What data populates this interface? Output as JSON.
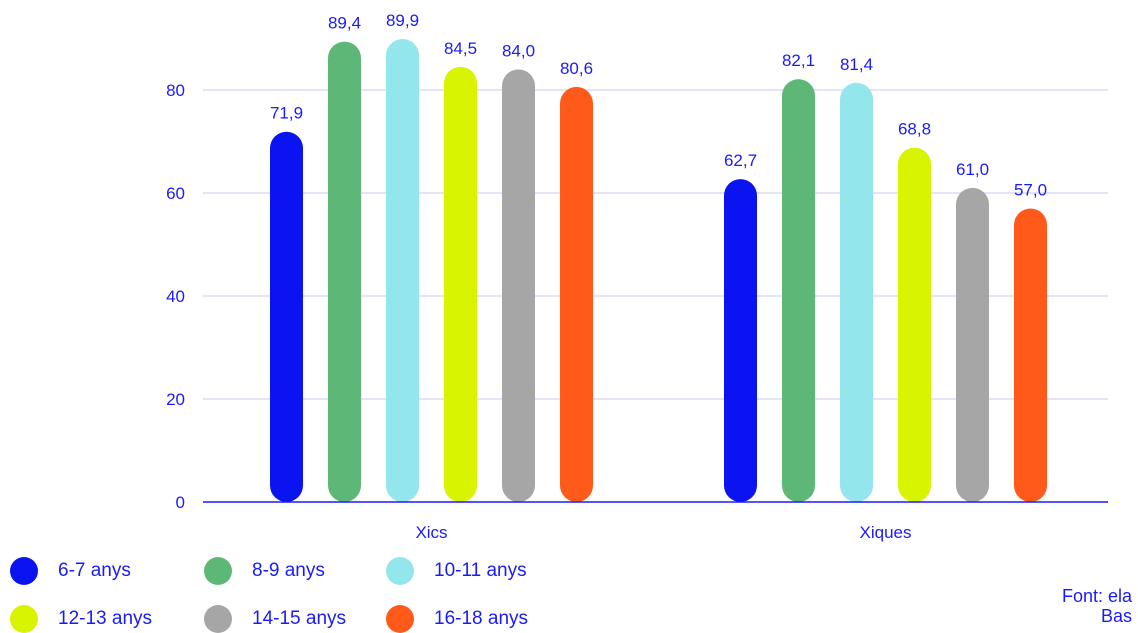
{
  "chart_data": {
    "type": "bar",
    "categories": [
      "Xics",
      "Xiques"
    ],
    "series": [
      {
        "name": "6-7 anys",
        "color": "#0a14f0",
        "values": [
          71.9,
          62.7
        ],
        "labels": [
          "71,9",
          "62,7"
        ]
      },
      {
        "name": "8-9 anys",
        "color": "#5db877",
        "values": [
          89.4,
          82.1
        ],
        "labels": [
          "89,4",
          "82,1"
        ]
      },
      {
        "name": "10-11 anys",
        "color": "#93e6ec",
        "values": [
          89.9,
          81.4
        ],
        "labels": [
          "89,9",
          "81,4"
        ]
      },
      {
        "name": "12-13 anys",
        "color": "#d9f400",
        "values": [
          84.5,
          68.8
        ],
        "labels": [
          "84,5",
          "68,8"
        ]
      },
      {
        "name": "14-15 anys",
        "color": "#a6a6a6",
        "values": [
          84.0,
          61.0
        ],
        "labels": [
          "84,0",
          "61,0"
        ]
      },
      {
        "name": "16-18 anys",
        "color": "#ff5a1a",
        "values": [
          80.6,
          57.0
        ],
        "labels": [
          "80,6",
          "57,0"
        ]
      }
    ],
    "yticks": [
      "0",
      "20",
      "40",
      "60",
      "80"
    ],
    "ylim": [
      0,
      90
    ],
    "grid": true,
    "legend_position": "bottom-left",
    "text_color": "#1a1aff",
    "grid_color": "#c9c9f2",
    "axis_color": "#1a1aff"
  },
  "source": {
    "line1": "Font: ela",
    "line2": "Bas"
  }
}
